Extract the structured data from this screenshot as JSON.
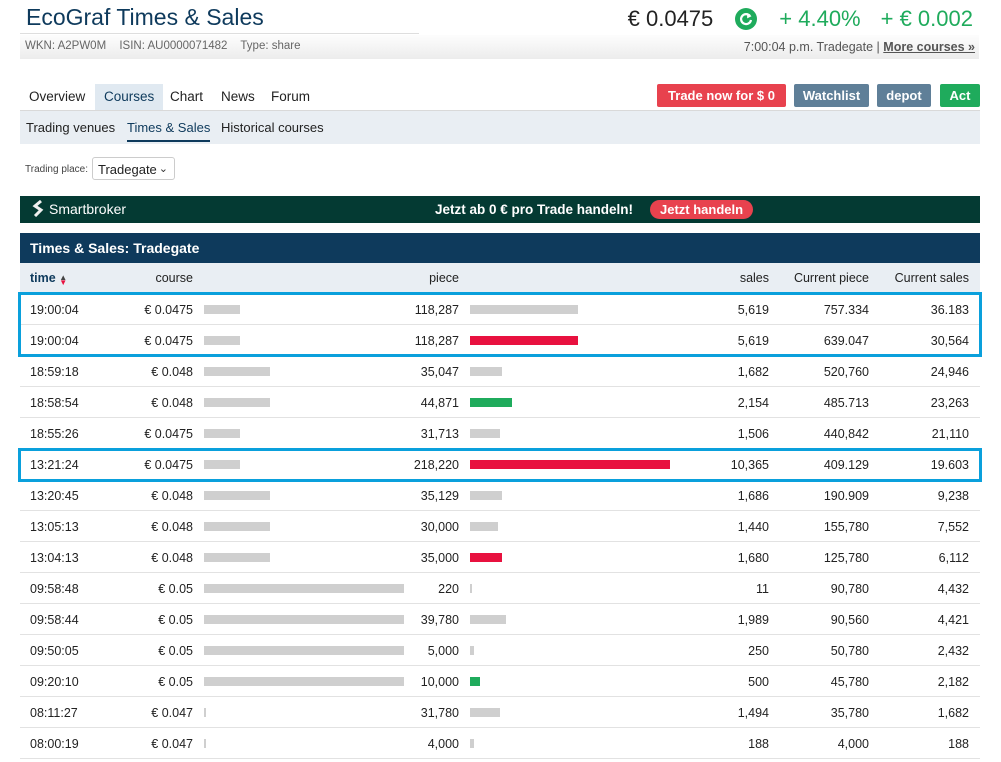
{
  "header": {
    "title": "EcoGraf Times & Sales",
    "price": "€ 0.0475",
    "change_pct": "+ 4.40%",
    "change_abs": "+ € 0.002",
    "wkn": "WKN: A2PW0M",
    "isin": "ISIN: AU0000071482",
    "type": "Type: share",
    "timestamp": "7:00:04 p.m. Tradegate",
    "more_courses": "More courses »",
    "updown_icon": "refresh-arrow-icon",
    "up_color": "#1fab5c"
  },
  "nav": {
    "tabs": [
      "Overview",
      "Courses",
      "Chart",
      "News",
      "Forum"
    ],
    "active_tab": "Courses",
    "buttons": {
      "trade": "Trade now for $ 0",
      "watchlist": "Watchlist",
      "depot": "depot",
      "act": "Act"
    }
  },
  "subnav": {
    "tabs": [
      "Trading venues",
      "Times & Sales",
      "Historical courses"
    ],
    "active": "Times & Sales"
  },
  "trading_place": {
    "label": "Trading place:",
    "value": "Tradegate"
  },
  "banner": {
    "brand": "Smartbroker",
    "text": "Jetzt ab 0 € pro Trade handeln!",
    "button": "Jetzt handeln"
  },
  "table": {
    "title": "Times & Sales: Tradegate",
    "columns": {
      "time": "time",
      "course": "course",
      "piece": "piece",
      "sales": "sales",
      "current_piece": "Current piece",
      "current_sales": "Current sales"
    },
    "rows": [
      {
        "time": "19:00:04",
        "course": "€ 0.0475",
        "course_bar": 0.18,
        "piece": "118,287",
        "piece_bar": 0.54,
        "piece_color": "#cfcfcf",
        "sales": "5,619",
        "current_piece": "757.334",
        "current_sales": "36.183"
      },
      {
        "time": "19:00:04",
        "course": "€ 0.0475",
        "course_bar": 0.18,
        "piece": "118,287",
        "piece_bar": 0.54,
        "piece_color": "#e8113f",
        "sales": "5,619",
        "current_piece": "639.047",
        "current_sales": "30,564"
      },
      {
        "time": "18:59:18",
        "course": "€ 0.048",
        "course_bar": 0.33,
        "piece": "35,047",
        "piece_bar": 0.16,
        "piece_color": "#cfcfcf",
        "sales": "1,682",
        "current_piece": "520,760",
        "current_sales": "24,946"
      },
      {
        "time": "18:58:54",
        "course": "€ 0.048",
        "course_bar": 0.33,
        "piece": "44,871",
        "piece_bar": 0.21,
        "piece_color": "#1fab5c",
        "sales": "2,154",
        "current_piece": "485.713",
        "current_sales": "23,263"
      },
      {
        "time": "18:55:26",
        "course": "€ 0.0475",
        "course_bar": 0.18,
        "piece": "31,713",
        "piece_bar": 0.15,
        "piece_color": "#cfcfcf",
        "sales": "1,506",
        "current_piece": "440,842",
        "current_sales": "21,110"
      },
      {
        "time": "13:21:24",
        "course": "€ 0.0475",
        "course_bar": 0.18,
        "piece": "218,220",
        "piece_bar": 1.0,
        "piece_color": "#e8113f",
        "sales": "10,365",
        "current_piece": "409.129",
        "current_sales": "19.603"
      },
      {
        "time": "13:20:45",
        "course": "€ 0.048",
        "course_bar": 0.33,
        "piece": "35,129",
        "piece_bar": 0.16,
        "piece_color": "#cfcfcf",
        "sales": "1,686",
        "current_piece": "190.909",
        "current_sales": "9,238"
      },
      {
        "time": "13:05:13",
        "course": "€ 0.048",
        "course_bar": 0.33,
        "piece": "30,000",
        "piece_bar": 0.14,
        "piece_color": "#cfcfcf",
        "sales": "1,440",
        "current_piece": "155,780",
        "current_sales": "7,552"
      },
      {
        "time": "13:04:13",
        "course": "€ 0.048",
        "course_bar": 0.33,
        "piece": "35,000",
        "piece_bar": 0.16,
        "piece_color": "#e8113f",
        "sales": "1,680",
        "current_piece": "125,780",
        "current_sales": "6,112"
      },
      {
        "time": "09:58:48",
        "course": "€ 0.05",
        "course_bar": 1.0,
        "piece": "220",
        "piece_bar": 0.01,
        "piece_color": "#cfcfcf",
        "sales": "11",
        "current_piece": "90,780",
        "current_sales": "4,432"
      },
      {
        "time": "09:58:44",
        "course": "€ 0.05",
        "course_bar": 1.0,
        "piece": "39,780",
        "piece_bar": 0.18,
        "piece_color": "#cfcfcf",
        "sales": "1,989",
        "current_piece": "90,560",
        "current_sales": "4,421"
      },
      {
        "time": "09:50:05",
        "course": "€ 0.05",
        "course_bar": 1.0,
        "piece": "5,000",
        "piece_bar": 0.02,
        "piece_color": "#cfcfcf",
        "sales": "250",
        "current_piece": "50,780",
        "current_sales": "2,432"
      },
      {
        "time": "09:20:10",
        "course": "€ 0.05",
        "course_bar": 1.0,
        "piece": "10,000",
        "piece_bar": 0.05,
        "piece_color": "#1fab5c",
        "sales": "500",
        "current_piece": "45,780",
        "current_sales": "2,182"
      },
      {
        "time": "08:11:27",
        "course": "€ 0.047",
        "course_bar": 0.01,
        "piece": "31,780",
        "piece_bar": 0.15,
        "piece_color": "#cfcfcf",
        "sales": "1,494",
        "current_piece": "35,780",
        "current_sales": "1,682"
      },
      {
        "time": "08:00:19",
        "course": "€ 0.047",
        "course_bar": 0.01,
        "piece": "4,000",
        "piece_bar": 0.02,
        "piece_color": "#cfcfcf",
        "sales": "188",
        "current_piece": "4,000",
        "current_sales": "188"
      }
    ]
  },
  "colors": {
    "navy": "#0e3a5c",
    "highlight": "#0aa0dc",
    "sell_red": "#e8113f",
    "buy_green": "#1fab5c",
    "neutral_bar": "#cfcfcf"
  }
}
